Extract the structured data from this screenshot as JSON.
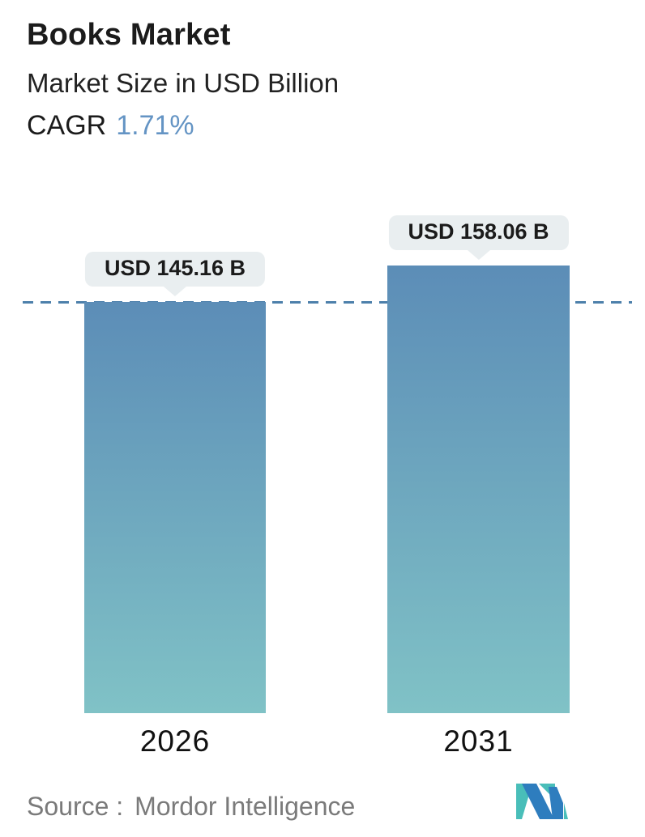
{
  "header": {
    "title": "Books Market",
    "subtitle": "Market Size in USD Billion",
    "cagr_label": "CAGR",
    "cagr_value": "1.71%"
  },
  "chart_data": {
    "type": "bar",
    "title": "Books Market",
    "subtitle": "Market Size in USD Billion",
    "unit": "USD Billion",
    "cagr_percent": 1.71,
    "categories": [
      "2026",
      "2031"
    ],
    "values": [
      145.16,
      158.06
    ],
    "value_labels": [
      "USD 145.16 B",
      "USD 158.06 B"
    ],
    "ylim": [
      0,
      158.06
    ],
    "grid": false,
    "legend": false,
    "reference_line": {
      "value": 145.16,
      "style": "dashed",
      "color": "#4D80AB"
    },
    "bar_gradient": {
      "top": "#5C8DB7",
      "bottom": "#80C2C6"
    }
  },
  "footer": {
    "source_label": "Source :",
    "source_value": "Mordor Intelligence",
    "logo": "mordor-intelligence-logo"
  },
  "colors": {
    "accent": "#6494C4",
    "bar_top": "#5C8DB7",
    "bar_bottom": "#80C2C6",
    "dash_color": "#4D80AB",
    "bubble_bg": "#E9EEF0",
    "text_dark": "#1B1B1B",
    "source_gray": "#7A7A7A",
    "logo_blue": "#2E7DBE",
    "logo_teal": "#49BEB9"
  }
}
